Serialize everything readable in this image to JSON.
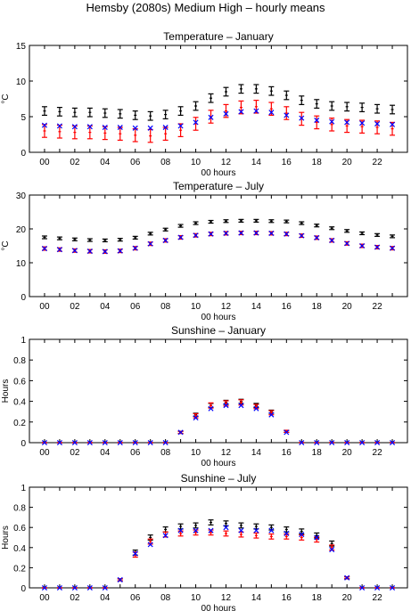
{
  "title": "Hemsby (2080s) Medium High – hourly means",
  "colors": {
    "black": "#000000",
    "red": "#ff0000",
    "blue": "#0000ff"
  },
  "chart_data": [
    {
      "type": "scatter",
      "title": "Temperature – January",
      "xlabel": "00 hours",
      "ylabel": "°C",
      "xlim": [
        -1,
        24
      ],
      "ylim": [
        0,
        15
      ],
      "yticks": [
        0,
        5,
        10,
        15
      ],
      "xtick_labels": [
        "00",
        "02",
        "04",
        "06",
        "08",
        "10",
        "12",
        "14",
        "16",
        "18",
        "20",
        "22"
      ],
      "x": [
        0,
        1,
        2,
        3,
        4,
        5,
        6,
        7,
        8,
        9,
        10,
        11,
        12,
        13,
        14,
        15,
        16,
        17,
        18,
        19,
        20,
        21,
        22,
        23
      ],
      "series": [
        {
          "color": "black",
          "marker": "errorbar",
          "values": [
            5.8,
            5.7,
            5.6,
            5.6,
            5.5,
            5.4,
            5.2,
            5.1,
            5.3,
            5.8,
            6.5,
            7.6,
            8.5,
            8.9,
            8.9,
            8.6,
            8.0,
            7.3,
            6.8,
            6.5,
            6.4,
            6.3,
            6.1,
            6.0
          ],
          "err": [
            0.6,
            0.6,
            0.6,
            0.6,
            0.6,
            0.6,
            0.6,
            0.6,
            0.6,
            0.6,
            0.6,
            0.6,
            0.6,
            0.6,
            0.6,
            0.6,
            0.6,
            0.6,
            0.6,
            0.6,
            0.6,
            0.6,
            0.6,
            0.6
          ]
        },
        {
          "color": "red",
          "marker": "errorbar",
          "values": [
            3.0,
            2.9,
            2.8,
            2.8,
            2.7,
            2.6,
            2.4,
            2.3,
            2.6,
            3.1,
            4.0,
            5.0,
            5.8,
            6.3,
            6.4,
            6.1,
            5.5,
            4.7,
            4.2,
            3.9,
            3.7,
            3.6,
            3.5,
            3.3
          ],
          "err": [
            0.9,
            0.9,
            0.9,
            0.9,
            0.9,
            0.9,
            0.9,
            0.9,
            0.9,
            0.9,
            0.9,
            0.9,
            0.9,
            0.9,
            0.9,
            0.9,
            0.9,
            0.9,
            0.9,
            0.9,
            0.9,
            0.9,
            0.9,
            0.9
          ]
        },
        {
          "color": "blue",
          "marker": "x",
          "values": [
            3.8,
            3.7,
            3.6,
            3.6,
            3.5,
            3.5,
            3.4,
            3.4,
            3.5,
            3.7,
            4.2,
            4.9,
            5.4,
            5.7,
            5.8,
            5.6,
            5.2,
            4.8,
            4.5,
            4.3,
            4.2,
            4.1,
            4.0,
            3.9
          ]
        }
      ]
    },
    {
      "type": "scatter",
      "title": "Temperature – July",
      "xlabel": "00 hours",
      "ylabel": "°C",
      "xlim": [
        -1,
        24
      ],
      "ylim": [
        0,
        30
      ],
      "yticks": [
        0,
        10,
        20,
        30
      ],
      "xtick_labels": [
        "00",
        "02",
        "04",
        "06",
        "08",
        "10",
        "12",
        "14",
        "16",
        "18",
        "20",
        "22"
      ],
      "x": [
        0,
        1,
        2,
        3,
        4,
        5,
        6,
        7,
        8,
        9,
        10,
        11,
        12,
        13,
        14,
        15,
        16,
        17,
        18,
        19,
        20,
        21,
        22,
        23
      ],
      "series": [
        {
          "color": "black",
          "marker": "errorbar",
          "values": [
            17.5,
            17.2,
            16.9,
            16.7,
            16.6,
            16.8,
            17.4,
            18.6,
            19.8,
            20.9,
            21.7,
            22.1,
            22.3,
            22.4,
            22.4,
            22.3,
            22.2,
            21.7,
            21.0,
            20.2,
            19.4,
            18.7,
            18.2,
            17.8
          ],
          "err": [
            0.4,
            0.4,
            0.4,
            0.4,
            0.4,
            0.4,
            0.4,
            0.4,
            0.4,
            0.4,
            0.4,
            0.4,
            0.4,
            0.4,
            0.4,
            0.4,
            0.4,
            0.4,
            0.4,
            0.4,
            0.4,
            0.4,
            0.4,
            0.4
          ]
        },
        {
          "color": "red",
          "marker": "errorbar",
          "values": [
            14.2,
            13.9,
            13.6,
            13.4,
            13.3,
            13.5,
            14.3,
            15.6,
            16.6,
            17.5,
            18.1,
            18.5,
            18.7,
            18.8,
            18.8,
            18.7,
            18.5,
            18.0,
            17.4,
            16.6,
            15.7,
            15.0,
            14.6,
            14.3
          ],
          "err": [
            0.5,
            0.5,
            0.5,
            0.5,
            0.5,
            0.5,
            0.5,
            0.5,
            0.5,
            0.5,
            0.5,
            0.5,
            0.5,
            0.5,
            0.5,
            0.5,
            0.5,
            0.5,
            0.5,
            0.5,
            0.5,
            0.5,
            0.5,
            0.5
          ]
        },
        {
          "color": "blue",
          "marker": "x",
          "values": [
            14.2,
            13.9,
            13.6,
            13.4,
            13.3,
            13.5,
            14.3,
            15.6,
            16.6,
            17.5,
            18.1,
            18.5,
            18.7,
            18.8,
            18.8,
            18.7,
            18.5,
            18.0,
            17.4,
            16.6,
            15.7,
            15.0,
            14.6,
            14.3
          ]
        }
      ]
    },
    {
      "type": "scatter",
      "title": "Sunshine – January",
      "xlabel": "00 hours",
      "ylabel": "Hours",
      "xlim": [
        -1,
        24
      ],
      "ylim": [
        0,
        1
      ],
      "yticks": [
        0,
        0.2,
        0.4,
        0.6,
        0.8,
        1
      ],
      "xtick_labels": [
        "00",
        "02",
        "04",
        "06",
        "08",
        "10",
        "12",
        "14",
        "16",
        "18",
        "20",
        "22"
      ],
      "x": [
        0,
        1,
        2,
        3,
        4,
        5,
        6,
        7,
        8,
        9,
        10,
        11,
        12,
        13,
        14,
        15,
        16,
        17,
        18,
        19,
        20,
        21,
        22,
        23
      ],
      "series": [
        {
          "color": "black",
          "marker": "errorbar",
          "values": [
            0,
            0,
            0,
            0,
            0,
            0,
            0,
            0,
            0,
            0.1,
            0.27,
            0.36,
            0.39,
            0.4,
            0.36,
            0.3,
            0.11,
            0,
            0,
            0,
            0,
            0,
            0,
            0
          ],
          "err": [
            0,
            0,
            0,
            0,
            0,
            0,
            0,
            0,
            0,
            0.01,
            0.015,
            0.02,
            0.02,
            0.02,
            0.02,
            0.015,
            0.01,
            0,
            0,
            0,
            0,
            0,
            0,
            0
          ]
        },
        {
          "color": "red",
          "marker": "errorbar",
          "values": [
            0,
            0,
            0,
            0,
            0,
            0,
            0,
            0,
            0,
            0.1,
            0.26,
            0.36,
            0.38,
            0.39,
            0.35,
            0.29,
            0.11,
            0,
            0,
            0,
            0,
            0,
            0,
            0
          ],
          "err": [
            0,
            0,
            0,
            0,
            0,
            0,
            0,
            0,
            0,
            0.01,
            0.02,
            0.025,
            0.025,
            0.025,
            0.02,
            0.02,
            0.01,
            0,
            0,
            0,
            0,
            0,
            0,
            0
          ]
        },
        {
          "color": "blue",
          "marker": "x",
          "values": [
            0,
            0,
            0,
            0,
            0,
            0,
            0,
            0,
            0,
            0.1,
            0.24,
            0.33,
            0.36,
            0.36,
            0.33,
            0.27,
            0.1,
            0,
            0,
            0,
            0,
            0,
            0,
            0
          ]
        }
      ]
    },
    {
      "type": "scatter",
      "title": "Sunshine – July",
      "xlabel": "00 hours",
      "ylabel": "Hours",
      "xlim": [
        -1,
        24
      ],
      "ylim": [
        0,
        1
      ],
      "yticks": [
        0,
        0.2,
        0.4,
        0.6,
        0.8,
        1
      ],
      "xtick_labels": [
        "00",
        "02",
        "04",
        "06",
        "08",
        "10",
        "12",
        "14",
        "16",
        "18",
        "20",
        "22"
      ],
      "x": [
        0,
        1,
        2,
        3,
        4,
        5,
        6,
        7,
        8,
        9,
        10,
        11,
        12,
        13,
        14,
        15,
        16,
        17,
        18,
        19,
        20,
        21,
        22,
        23
      ],
      "series": [
        {
          "color": "black",
          "marker": "errorbar",
          "values": [
            0,
            0,
            0,
            0,
            0,
            0.08,
            0.35,
            0.5,
            0.58,
            0.61,
            0.62,
            0.65,
            0.64,
            0.62,
            0.61,
            0.6,
            0.58,
            0.56,
            0.52,
            0.44,
            0.1,
            0,
            0,
            0
          ],
          "err": [
            0,
            0,
            0,
            0,
            0,
            0.01,
            0.025,
            0.025,
            0.025,
            0.025,
            0.025,
            0.025,
            0.025,
            0.025,
            0.025,
            0.025,
            0.025,
            0.025,
            0.025,
            0.025,
            0.01,
            0,
            0,
            0
          ]
        },
        {
          "color": "red",
          "marker": "errorbar",
          "values": [
            0,
            0,
            0,
            0,
            0,
            0.08,
            0.33,
            0.46,
            0.53,
            0.54,
            0.55,
            0.55,
            0.54,
            0.53,
            0.52,
            0.51,
            0.51,
            0.5,
            0.48,
            0.4,
            0.1,
            0,
            0,
            0
          ],
          "err": [
            0,
            0,
            0,
            0,
            0,
            0.01,
            0.025,
            0.025,
            0.025,
            0.025,
            0.025,
            0.025,
            0.025,
            0.025,
            0.025,
            0.025,
            0.025,
            0.025,
            0.025,
            0.025,
            0.01,
            0,
            0,
            0
          ]
        },
        {
          "color": "blue",
          "marker": "x",
          "values": [
            0,
            0,
            0,
            0,
            0,
            0.08,
            0.34,
            0.43,
            0.52,
            0.57,
            0.57,
            0.57,
            0.6,
            0.57,
            0.57,
            0.57,
            0.54,
            0.53,
            0.5,
            0.38,
            0.1,
            0,
            0,
            0
          ]
        }
      ]
    }
  ]
}
